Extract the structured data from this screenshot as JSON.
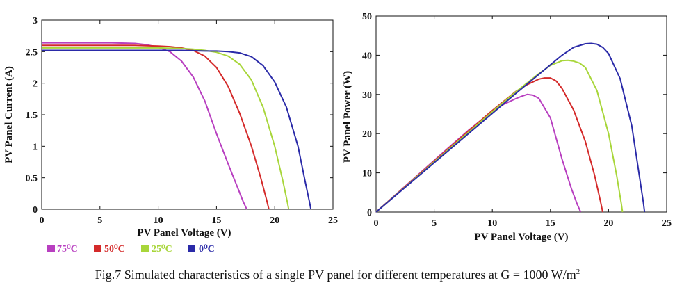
{
  "caption": {
    "text": "Fig.7 Simulated characteristics of a single PV panel for different temperatures at G = 1000 W/m",
    "superscript": "2"
  },
  "legend": [
    {
      "label": "75⁰C",
      "color": "#b83fc0"
    },
    {
      "label": "50⁰C",
      "color": "#d42a2a"
    },
    {
      "label": "25⁰C",
      "color": "#a8d63a"
    },
    {
      "label": "0⁰C",
      "color": "#2a2aa8"
    }
  ],
  "chart_data": [
    {
      "type": "line",
      "title": "",
      "xlabel": "PV Panel Voltage (V)",
      "ylabel": "PV Panel Current (A)",
      "xlim": [
        0,
        25
      ],
      "ylim": [
        0,
        3
      ],
      "xticks": [
        "0",
        "5",
        "10",
        "15",
        "20",
        "25"
      ],
      "yticks": [
        "0",
        "0.5",
        "1",
        "1.5",
        "2",
        "2.5",
        "3"
      ],
      "series": [
        {
          "name": "75⁰C",
          "color": "#b83fc0",
          "x": [
            0,
            6,
            8,
            9,
            10,
            11,
            12,
            13,
            14,
            15,
            16,
            16.8,
            17.3,
            17.6
          ],
          "y": [
            2.64,
            2.64,
            2.63,
            2.61,
            2.57,
            2.5,
            2.35,
            2.1,
            1.72,
            1.2,
            0.72,
            0.35,
            0.12,
            0
          ]
        },
        {
          "name": "50⁰C",
          "color": "#d42a2a",
          "x": [
            0,
            8,
            10,
            11,
            12,
            13,
            14,
            15,
            16,
            17,
            18,
            18.8,
            19.3,
            19.5
          ],
          "y": [
            2.6,
            2.6,
            2.59,
            2.58,
            2.56,
            2.52,
            2.43,
            2.25,
            1.95,
            1.52,
            1.0,
            0.5,
            0.15,
            0
          ]
        },
        {
          "name": "25⁰C",
          "color": "#a8d63a",
          "x": [
            0,
            10,
            12,
            13,
            14,
            15,
            16,
            17,
            18,
            19,
            20,
            20.7,
            21.1,
            21.2
          ],
          "y": [
            2.56,
            2.56,
            2.55,
            2.54,
            2.52,
            2.49,
            2.43,
            2.3,
            2.05,
            1.62,
            1.0,
            0.45,
            0.1,
            0
          ]
        },
        {
          "name": "0⁰C",
          "color": "#2a2aa8",
          "x": [
            0,
            12,
            14,
            15,
            16,
            17,
            18,
            19,
            20,
            21,
            22,
            22.6,
            23.0,
            23.1
          ],
          "y": [
            2.52,
            2.52,
            2.51,
            2.51,
            2.5,
            2.48,
            2.42,
            2.28,
            2.02,
            1.62,
            1.0,
            0.45,
            0.1,
            0
          ]
        }
      ]
    },
    {
      "type": "line",
      "title": "",
      "xlabel": "PV Panel Voltage (V)",
      "ylabel": "PV Panel Power (W)",
      "xlim": [
        0,
        25
      ],
      "ylim": [
        0,
        50
      ],
      "xticks": [
        "0",
        "5",
        "10",
        "15",
        "20",
        "25"
      ],
      "yticks": [
        "0",
        "10",
        "20",
        "30",
        "40",
        "50"
      ],
      "series": [
        {
          "name": "75⁰C",
          "color": "#b83fc0",
          "x": [
            0,
            6,
            8,
            10,
            11,
            12,
            12.5,
            13,
            13.5,
            14,
            15,
            16,
            16.8,
            17.3,
            17.6
          ],
          "y": [
            0,
            15.8,
            21,
            25.7,
            27.5,
            28.9,
            29.5,
            30.0,
            29.8,
            29.0,
            24.0,
            13.5,
            6.0,
            2.0,
            0
          ]
        },
        {
          "name": "50⁰C",
          "color": "#d42a2a",
          "x": [
            0,
            8,
            10,
            12,
            13,
            14,
            14.5,
            15,
            15.5,
            16,
            17,
            18,
            18.8,
            19.3,
            19.5
          ],
          "y": [
            0,
            20.8,
            25.9,
            30.7,
            32.5,
            33.9,
            34.2,
            34.2,
            33.4,
            31.5,
            26.0,
            18.0,
            9.4,
            2.8,
            0
          ]
        },
        {
          "name": "25⁰C",
          "color": "#a8d63a",
          "x": [
            0,
            10,
            12,
            14,
            15,
            16,
            16.5,
            17,
            17.5,
            18,
            19,
            20,
            20.7,
            21.1,
            21.2
          ],
          "y": [
            0,
            25.6,
            30.6,
            35.3,
            37.4,
            38.6,
            38.7,
            38.5,
            38.0,
            36.9,
            31.0,
            20.0,
            9.3,
            2.1,
            0
          ]
        },
        {
          "name": "0⁰C",
          "color": "#2a2aa8",
          "x": [
            0,
            12,
            14,
            16,
            17,
            18,
            18.5,
            19,
            19.5,
            20,
            21,
            22,
            22.6,
            23.0,
            23.1
          ],
          "y": [
            0,
            30.2,
            35.1,
            40.0,
            42.0,
            42.9,
            43.0,
            42.8,
            42.0,
            40.4,
            34.0,
            22.0,
            10.2,
            2.3,
            0
          ]
        }
      ]
    }
  ]
}
